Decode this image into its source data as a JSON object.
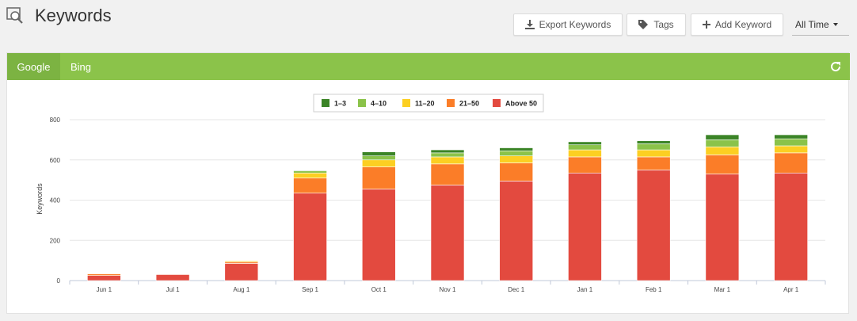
{
  "header": {
    "title": "Keywords",
    "export_label": "Export Keywords",
    "tags_label": "Tags",
    "add_label": "Add Keyword",
    "time_range": "All Time"
  },
  "tabs": [
    {
      "label": "Google",
      "active": true
    },
    {
      "label": "Bing",
      "active": false
    }
  ],
  "colors": {
    "tabbar": "#8bc34a",
    "tab_active": "#7cb342"
  },
  "icons": {
    "page": "magnifier-icon",
    "export": "download-icon",
    "tags": "tag-icon",
    "add": "plus-icon",
    "refresh": "refresh-icon"
  },
  "chart_data": {
    "type": "bar",
    "stacked": true,
    "categories": [
      "Jun 1",
      "Jul 1",
      "Aug 1",
      "Sep 1",
      "Oct 1",
      "Nov 1",
      "Dec 1",
      "Jan 1",
      "Feb 1",
      "Mar 1",
      "Apr 1"
    ],
    "series": [
      {
        "name": "Above 50",
        "color": "#e34a3f",
        "values": [
          25,
          30,
          85,
          435,
          455,
          475,
          495,
          535,
          550,
          530,
          535
        ]
      },
      {
        "name": "21–50",
        "color": "#fb7d28",
        "values": [
          8,
          3,
          8,
          75,
          110,
          105,
          90,
          80,
          65,
          95,
          100
        ]
      },
      {
        "name": "11–20",
        "color": "#fccf22",
        "values": [
          3,
          1,
          5,
          25,
          35,
          35,
          35,
          35,
          35,
          40,
          35
        ]
      },
      {
        "name": "4–10",
        "color": "#8bc34a",
        "values": [
          1,
          1,
          2,
          10,
          20,
          20,
          25,
          25,
          30,
          35,
          35
        ]
      },
      {
        "name": "1–3",
        "color": "#3b8427",
        "values": [
          0,
          0,
          0,
          3,
          20,
          15,
          15,
          15,
          15,
          25,
          20
        ]
      }
    ],
    "legend_order": [
      "1–3",
      "4–10",
      "11–20",
      "21–50",
      "Above 50"
    ],
    "legend_position": "top-center",
    "ylabel": "Keywords",
    "xlabel": "",
    "ylim": [
      0,
      800
    ],
    "yticks": [
      "0",
      "200",
      "400",
      "600",
      "800"
    ],
    "grid": true
  }
}
